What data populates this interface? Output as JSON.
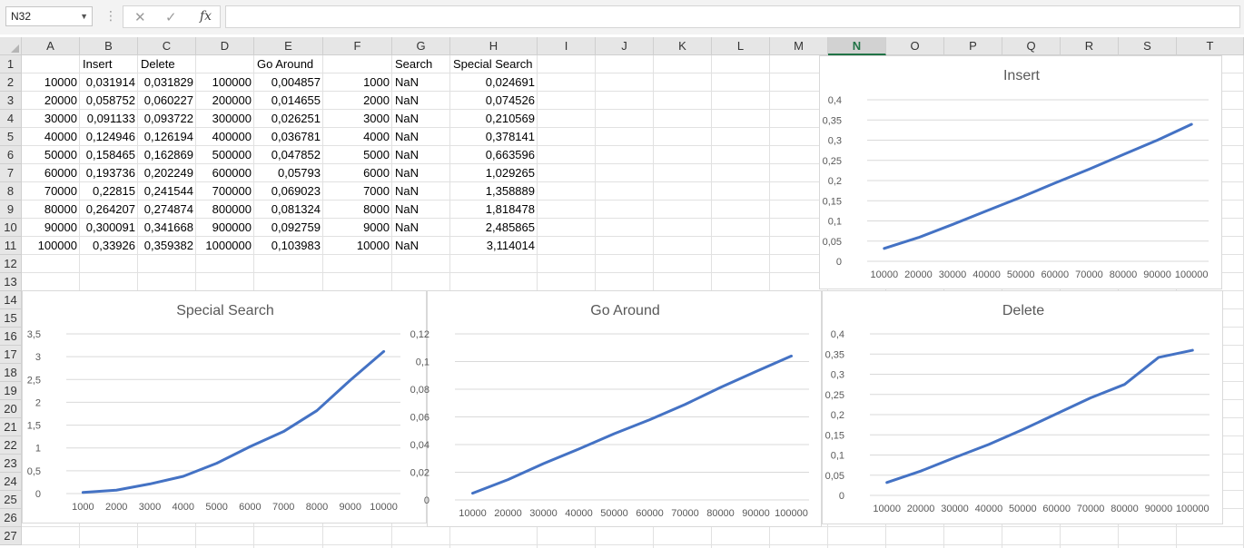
{
  "formula_bar": {
    "name_box": "N32",
    "formula": ""
  },
  "columns": [
    "A",
    "B",
    "C",
    "D",
    "E",
    "F",
    "G",
    "H",
    "I",
    "J",
    "K",
    "L",
    "M",
    "N",
    "O",
    "P",
    "Q",
    "R",
    "S",
    "T"
  ],
  "selected_column": "N",
  "rows": [
    "1",
    "2",
    "3",
    "4",
    "5",
    "6",
    "7",
    "8",
    "9",
    "10",
    "11",
    "12",
    "13",
    "14",
    "15",
    "16",
    "17",
    "18",
    "19",
    "20",
    "21",
    "22",
    "23",
    "24",
    "25",
    "26",
    "27"
  ],
  "headers": {
    "B": "Insert",
    "C": "Delete",
    "E": "Go Around",
    "G": "Search",
    "H": "Special Search"
  },
  "table": [
    {
      "A": "10000",
      "B": "0,031914",
      "C": "0,031829",
      "D": "100000",
      "E": "0,004857",
      "F": "1000",
      "G": "NaN",
      "H": "0,024691"
    },
    {
      "A": "20000",
      "B": "0,058752",
      "C": "0,060227",
      "D": "200000",
      "E": "0,014655",
      "F": "2000",
      "G": "NaN",
      "H": "0,074526"
    },
    {
      "A": "30000",
      "B": "0,091133",
      "C": "0,093722",
      "D": "300000",
      "E": "0,026251",
      "F": "3000",
      "G": "NaN",
      "H": "0,210569"
    },
    {
      "A": "40000",
      "B": "0,124946",
      "C": "0,126194",
      "D": "400000",
      "E": "0,036781",
      "F": "4000",
      "G": "NaN",
      "H": "0,378141"
    },
    {
      "A": "50000",
      "B": "0,158465",
      "C": "0,162869",
      "D": "500000",
      "E": "0,047852",
      "F": "5000",
      "G": "NaN",
      "H": "0,663596"
    },
    {
      "A": "60000",
      "B": "0,193736",
      "C": "0,202249",
      "D": "600000",
      "E": "0,05793",
      "F": "6000",
      "G": "NaN",
      "H": "1,029265"
    },
    {
      "A": "70000",
      "B": "0,22815",
      "C": "0,241544",
      "D": "700000",
      "E": "0,069023",
      "F": "7000",
      "G": "NaN",
      "H": "1,358889"
    },
    {
      "A": "80000",
      "B": "0,264207",
      "C": "0,274874",
      "D": "800000",
      "E": "0,081324",
      "F": "8000",
      "G": "NaN",
      "H": "1,818478"
    },
    {
      "A": "90000",
      "B": "0,300091",
      "C": "0,341668",
      "D": "900000",
      "E": "0,092759",
      "F": "9000",
      "G": "NaN",
      "H": "2,485865"
    },
    {
      "A": "100000",
      "B": "0,33926",
      "C": "0,359382",
      "D": "1000000",
      "E": "0,103983",
      "F": "10000",
      "G": "NaN",
      "H": "3,114014"
    }
  ],
  "chart_data": [
    {
      "type": "line",
      "title": "Insert",
      "categories": [
        "10000",
        "20000",
        "30000",
        "40000",
        "50000",
        "60000",
        "70000",
        "80000",
        "90000",
        "100000"
      ],
      "series": [
        {
          "values": [
            0.031914,
            0.058752,
            0.091133,
            0.124946,
            0.158465,
            0.193736,
            0.22815,
            0.264207,
            0.300091,
            0.33926
          ]
        }
      ],
      "ylim": [
        0,
        0.4
      ],
      "yticks": [
        "0",
        "0,05",
        "0,1",
        "0,15",
        "0,2",
        "0,25",
        "0,3",
        "0,35",
        "0,4"
      ],
      "grid": true,
      "line_color": "#4472c4"
    },
    {
      "type": "line",
      "title": "Special Search",
      "categories": [
        "1000",
        "2000",
        "3000",
        "4000",
        "5000",
        "6000",
        "7000",
        "8000",
        "9000",
        "10000"
      ],
      "series": [
        {
          "values": [
            0.024691,
            0.074526,
            0.210569,
            0.378141,
            0.663596,
            1.029265,
            1.358889,
            1.818478,
            2.485865,
            3.114014
          ]
        }
      ],
      "ylim": [
        0,
        3.5
      ],
      "yticks": [
        "0",
        "0,5",
        "1",
        "1,5",
        "2",
        "2,5",
        "3",
        "3,5"
      ],
      "grid": true,
      "line_color": "#4472c4"
    },
    {
      "type": "line",
      "title": "Go Around",
      "categories": [
        "10000",
        "20000",
        "30000",
        "40000",
        "50000",
        "60000",
        "70000",
        "80000",
        "90000",
        "100000"
      ],
      "series": [
        {
          "values": [
            0.004857,
            0.014655,
            0.026251,
            0.036781,
            0.047852,
            0.05793,
            0.069023,
            0.081324,
            0.092759,
            0.103983
          ]
        }
      ],
      "ylim": [
        0,
        0.12
      ],
      "yticks": [
        "0",
        "0,02",
        "0,04",
        "0,06",
        "0,08",
        "0,1",
        "0,12"
      ],
      "grid": true,
      "line_color": "#4472c4"
    },
    {
      "type": "line",
      "title": "Delete",
      "categories": [
        "10000",
        "20000",
        "30000",
        "40000",
        "50000",
        "60000",
        "70000",
        "80000",
        "90000",
        "100000"
      ],
      "series": [
        {
          "values": [
            0.031829,
            0.060227,
            0.093722,
            0.126194,
            0.162869,
            0.202249,
            0.241544,
            0.274874,
            0.341668,
            0.359382
          ]
        }
      ],
      "ylim": [
        0,
        0.4
      ],
      "yticks": [
        "0",
        "0,05",
        "0,1",
        "0,15",
        "0,2",
        "0,25",
        "0,3",
        "0,35",
        "0,4"
      ],
      "grid": true,
      "line_color": "#4472c4"
    }
  ]
}
